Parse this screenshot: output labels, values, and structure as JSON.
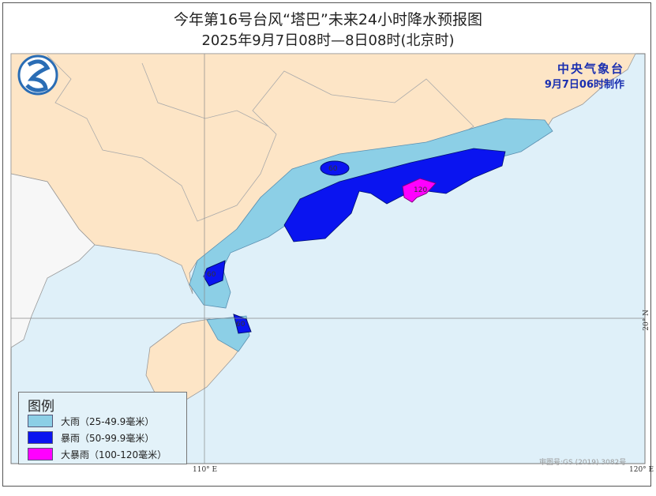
{
  "title": "今年第16号台风“塔巴”未来24小时降水预报图",
  "subtitle": "2025年9月7日08时—8日08时(北京时)",
  "agency": {
    "name": "中央气象台",
    "issued": "9月7日06时制作",
    "color": "#1a2fb0"
  },
  "legend": {
    "title": "图例",
    "items": [
      {
        "label": "大雨（25-49.9毫米）",
        "color": "#8ccfe6"
      },
      {
        "label": "暴雨（50-99.9毫米）",
        "color": "#0a14f0"
      },
      {
        "label": "大暴雨（100-120毫米）",
        "color": "#ff00ff"
      }
    ]
  },
  "contour_labels": [
    "60",
    "120",
    "60",
    "60"
  ],
  "grid": {
    "lon_110": "110° E",
    "lon_120": "120° E",
    "lat_20": "20° N"
  },
  "credit": "审图号:GS (2019) 3082号",
  "colors": {
    "land": "#fde5c6",
    "sea": "#dff0f9",
    "foreign_land": "#f7f7f7",
    "border": "#999999"
  }
}
